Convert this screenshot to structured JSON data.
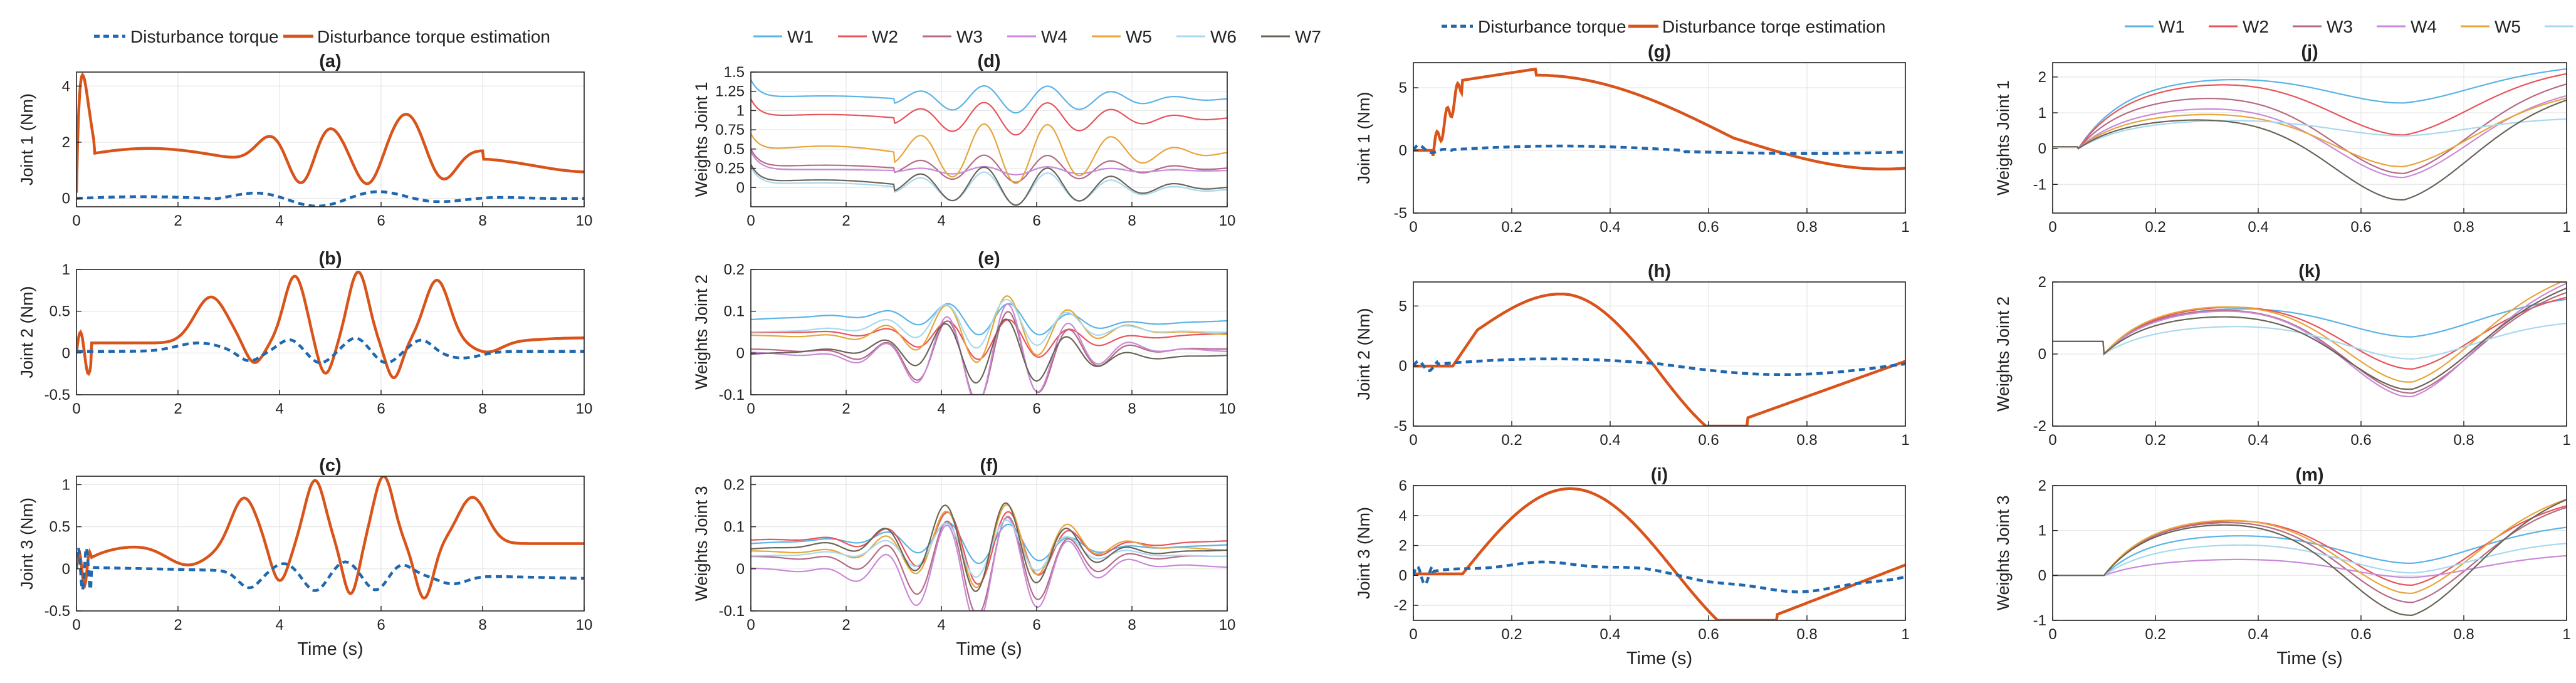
{
  "colors": {
    "torque": "#1f68b0",
    "estimate": "#d9541a",
    "weights": [
      "#5ab4e6",
      "#e8545b",
      "#b56b85",
      "#c98ad9",
      "#e7a53a",
      "#a8d9ee",
      "#6a6458"
    ]
  },
  "legends": {
    "torque_label": "Disturbance torque",
    "estimate_label_left": "Disturbance torque estimation",
    "estimate_label_right": "Disturbance torqe estimation",
    "weights": [
      "W1",
      "W2",
      "W3",
      "W4",
      "W5",
      "W6",
      "W7"
    ]
  },
  "xlabel": "Time (s)",
  "chart_data": [
    {
      "id": "a",
      "type": "line",
      "title": "(a)",
      "ylabel": "Joint 1 (Nm)",
      "xlim": [
        0,
        10
      ],
      "ylim": [
        -0.3,
        4.5
      ],
      "xticks": [
        0,
        2,
        4,
        6,
        8,
        10
      ],
      "yticks": [
        0,
        2,
        4
      ]
    },
    {
      "id": "b",
      "type": "line",
      "title": "(b)",
      "ylabel": "Joint 2 (Nm)",
      "xlim": [
        0,
        10
      ],
      "ylim": [
        -0.5,
        1
      ],
      "xticks": [
        0,
        2,
        4,
        6,
        8,
        10
      ],
      "yticks": [
        -0.5,
        0,
        0.5,
        1
      ]
    },
    {
      "id": "c",
      "type": "line",
      "title": "(c)",
      "ylabel": "Joint 3 (Nm)",
      "xlim": [
        0,
        10
      ],
      "ylim": [
        -0.5,
        1.1
      ],
      "xticks": [
        0,
        2,
        4,
        6,
        8,
        10
      ],
      "yticks": [
        -0.5,
        0,
        0.5,
        1
      ],
      "show_xlabel": true
    },
    {
      "id": "d",
      "type": "line",
      "title": "(d)",
      "ylabel": "Weights Joint 1",
      "xlim": [
        0,
        10
      ],
      "ylim": [
        -0.25,
        1.5
      ],
      "xticks": [
        0,
        2,
        4,
        6,
        8,
        10
      ],
      "yticks": [
        0,
        0.25,
        0.5,
        0.75,
        1,
        1.25,
        1.5
      ],
      "yticklabels": [
        "0",
        "0.25",
        "0.5",
        "0.75",
        "1",
        "1.25",
        "1.5"
      ]
    },
    {
      "id": "e",
      "type": "line",
      "title": "(e)",
      "ylabel": "Weights Joint 2",
      "xlim": [
        0,
        10
      ],
      "ylim": [
        -0.1,
        0.2
      ],
      "xticks": [
        0,
        2,
        4,
        6,
        8,
        10
      ],
      "yticks": [
        -0.1,
        0,
        0.1,
        0.2
      ]
    },
    {
      "id": "f",
      "type": "line",
      "title": "(f)",
      "ylabel": "Weights Joint 3",
      "xlim": [
        0,
        10
      ],
      "ylim": [
        -0.1,
        0.22
      ],
      "xticks": [
        0,
        2,
        4,
        6,
        8,
        10
      ],
      "yticks": [
        -0.1,
        0,
        0.1,
        0.2
      ],
      "show_xlabel": true
    },
    {
      "id": "g",
      "type": "line",
      "title": "(g)",
      "ylabel": "Joint 1 (Nm)",
      "xlim": [
        0,
        1
      ],
      "ylim": [
        -5,
        7
      ],
      "xticks": [
        0,
        0.2,
        0.4,
        0.6,
        0.8,
        1
      ],
      "yticks": [
        -5,
        0,
        5
      ]
    },
    {
      "id": "h",
      "type": "line",
      "title": "(h)",
      "ylabel": "Joint 2 (Nm)",
      "xlim": [
        0,
        1
      ],
      "ylim": [
        -5,
        7
      ],
      "xticks": [
        0,
        0.2,
        0.4,
        0.6,
        0.8,
        1
      ],
      "yticks": [
        -5,
        0,
        5
      ]
    },
    {
      "id": "i",
      "type": "line",
      "title": "(i)",
      "ylabel": "Joint 3 (Nm)",
      "xlim": [
        0,
        1
      ],
      "ylim": [
        -3,
        6
      ],
      "xticks": [
        0,
        0.2,
        0.4,
        0.6,
        0.8,
        1
      ],
      "yticks": [
        -2,
        0,
        2,
        4,
        6
      ],
      "show_xlabel": true
    },
    {
      "id": "j",
      "type": "line",
      "title": "(j)",
      "ylabel": "Weights Joint 1",
      "xlim": [
        0,
        1
      ],
      "ylim": [
        -1.8,
        2.4
      ],
      "xticks": [
        0,
        0.2,
        0.4,
        0.6,
        0.8,
        1
      ],
      "yticks": [
        -1,
        0,
        1,
        2
      ]
    },
    {
      "id": "k",
      "type": "line",
      "title": "(k)",
      "ylabel": "Weights Joint 2",
      "xlim": [
        0,
        1
      ],
      "ylim": [
        -2,
        2
      ],
      "xticks": [
        0,
        0.2,
        0.4,
        0.6,
        0.8,
        1
      ],
      "yticks": [
        -2,
        0,
        2
      ]
    },
    {
      "id": "m",
      "type": "line",
      "title": "(m)",
      "ylabel": "Weights Joint 3",
      "xlim": [
        0,
        1
      ],
      "ylim": [
        -1,
        2
      ],
      "xticks": [
        0,
        0.2,
        0.4,
        0.6,
        0.8,
        1
      ],
      "yticks": [
        -1,
        0,
        1,
        2
      ],
      "show_xlabel": true
    }
  ]
}
